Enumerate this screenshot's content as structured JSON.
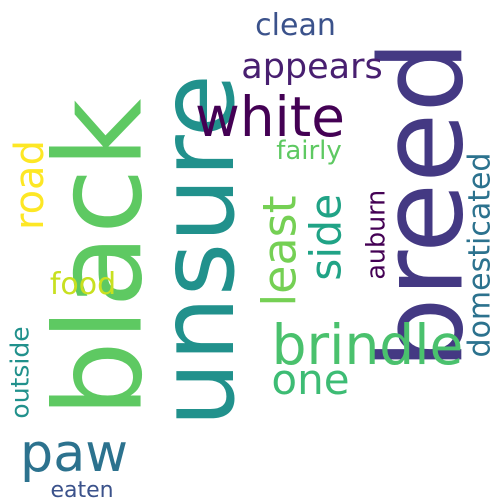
{
  "words": {
    "unsure": {
      "text": "unsure",
      "color": "#21918c"
    },
    "black": {
      "text": "black",
      "color": "#5ec962"
    },
    "breed": {
      "text": "breed",
      "color": "#443983"
    },
    "white": {
      "text": "white",
      "color": "#440154"
    },
    "brindle": {
      "text": "brindle",
      "color": "#4ac16d"
    },
    "paw": {
      "text": "paw",
      "color": "#2c728e"
    },
    "one": {
      "text": "one",
      "color": "#3dbc74"
    },
    "least": {
      "text": "least",
      "color": "#75d054"
    },
    "side": {
      "text": "side",
      "color": "#20a386"
    },
    "road": {
      "text": "road",
      "color": "#fde725"
    },
    "clean": {
      "text": "clean",
      "color": "#3b528b"
    },
    "appears": {
      "text": "appears",
      "color": "#481f70"
    },
    "fairly": {
      "text": "fairly",
      "color": "#5ec962"
    },
    "food": {
      "text": "food",
      "color": "#c8e020"
    },
    "auburn": {
      "text": "auburn",
      "color": "#440154"
    },
    "domesticated": {
      "text": "domesticated",
      "color": "#2c728e"
    },
    "outside": {
      "text": "outside",
      "color": "#21918c"
    },
    "eaten": {
      "text": "eaten",
      "color": "#3b528b"
    }
  }
}
